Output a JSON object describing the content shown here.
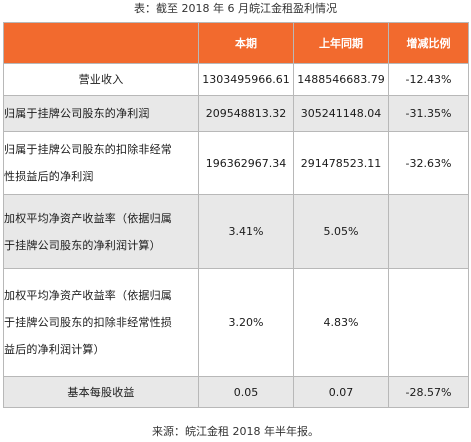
{
  "title": "表：截至 2018 年 6 月皖江金租盈利情况",
  "source": "来源：皖江金租 2018 年半年报。",
  "colors": {
    "header_bg": "#f26a2e",
    "header_text": "#ffffff",
    "row_alt_bg": "#e8e8e8",
    "border": "#b8b8b8"
  },
  "table": {
    "headers": [
      "",
      "本期",
      "上年同期",
      "增减比例"
    ],
    "rows": [
      {
        "label_lines": [
          "营业收入"
        ],
        "current": "1303495966.61",
        "prior": "1488546683.79",
        "change": "-12.43%"
      },
      {
        "label_lines": [
          "归属于挂牌公司股东的净利润"
        ],
        "current": "209548813.32",
        "prior": "305241148.04",
        "change": "-31.35%"
      },
      {
        "label_lines": [
          "归属于挂牌公司股东的扣除非经常",
          "性损益后的净利润"
        ],
        "current": "196362967.34",
        "prior": "291478523.11",
        "change": "-32.63%"
      },
      {
        "label_lines": [
          "加权平均净资产收益率（依据归属",
          "于挂牌公司股东的净利润计算）"
        ],
        "current": "3.41%",
        "prior": "5.05%",
        "change": ""
      },
      {
        "label_lines": [
          "加权平均净资产收益率（依据归属",
          "于挂牌公司股东的扣除非经常性损",
          "益后的净利润计算）"
        ],
        "current": "3.20%",
        "prior": "4.83%",
        "change": ""
      },
      {
        "label_lines": [
          "基本每股收益"
        ],
        "current": "0.05",
        "prior": "0.07",
        "change": "-28.57%"
      }
    ]
  }
}
